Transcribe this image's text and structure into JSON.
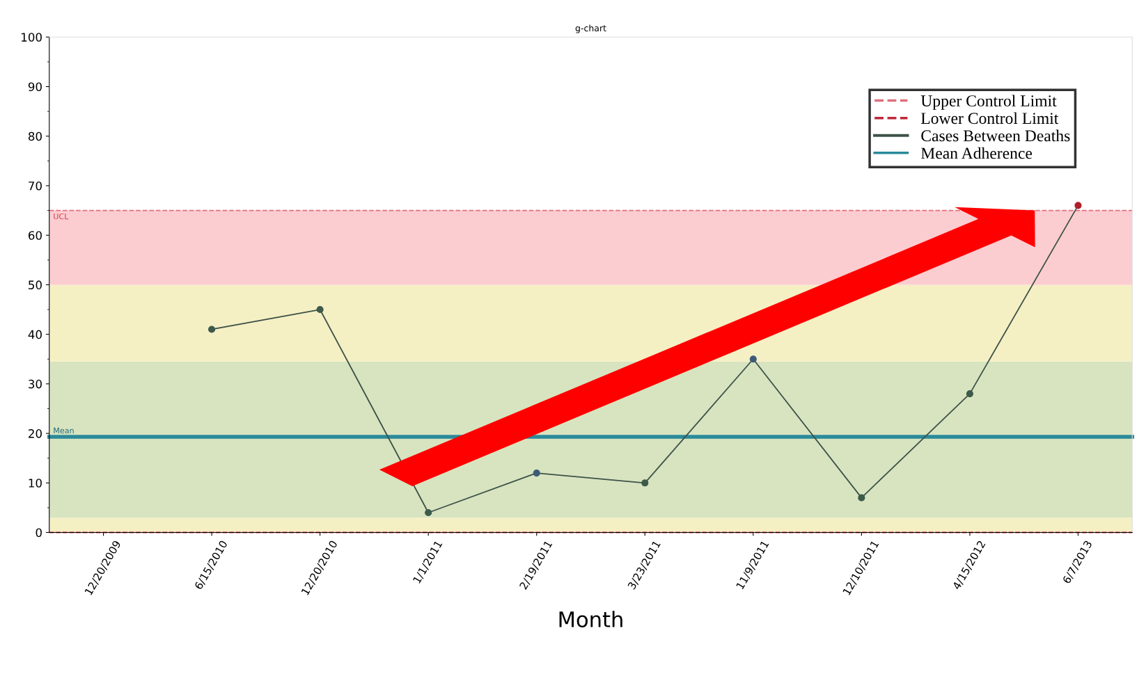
{
  "chart_data": {
    "type": "line",
    "title": "g-chart",
    "xlabel": "Month",
    "categories": [
      "12/20/2009",
      "6/15/2010",
      "12/20/2010",
      "1/1/2011",
      "2/19/2011",
      "3/23/2011",
      "11/9/2011",
      "12/10/2011",
      "4/15/2012",
      "6/7/2013"
    ],
    "series": [
      {
        "name": "Cases Between Deaths",
        "color": "#3d5247",
        "values": [
          null,
          41,
          45,
          4,
          12,
          10,
          35,
          7,
          28,
          66
        ],
        "colors": [
          "#3d5a4a",
          "#3d5a4a",
          "#3d5a4a",
          "#3d5a4a",
          "#3e5a7a",
          "#3d5a4a",
          "#3e5a7a",
          "#3d5a4a",
          "#3d5a4a",
          "#b0202a"
        ]
      }
    ],
    "ylim": [
      0,
      100
    ],
    "yticks": [
      0,
      10,
      20,
      30,
      40,
      50,
      60,
      70,
      80,
      90,
      100
    ],
    "ref_lines": [
      {
        "axis": "y",
        "value": 65,
        "label": "Upper Control Limit",
        "color": "#e0707e",
        "line_style": "dashed"
      },
      {
        "axis": "y",
        "value": 0,
        "label": "Lower Control Limit",
        "color": "#c0283a",
        "line_style": "dashed"
      },
      {
        "axis": "y",
        "value": 19.3,
        "label": "Mean Adherence",
        "color": "#2a8a9a",
        "line_style": "solid"
      }
    ],
    "bands": [
      {
        "axis": "y",
        "from": 0,
        "to": 3,
        "color": "#f5efc4"
      },
      {
        "axis": "y",
        "from": 3,
        "to": 34.5,
        "color": "#d8e4c0"
      },
      {
        "axis": "y",
        "from": 34.5,
        "to": 50,
        "color": "#f5efc4"
      },
      {
        "axis": "y",
        "from": 50,
        "to": 65,
        "color": "#fccdd0"
      }
    ],
    "annotations": [
      {
        "text": "UCL",
        "y": 65
      },
      {
        "text": "Mean",
        "y": 19.3
      }
    ],
    "marker": "circle",
    "grid": false,
    "legend": "top right"
  }
}
